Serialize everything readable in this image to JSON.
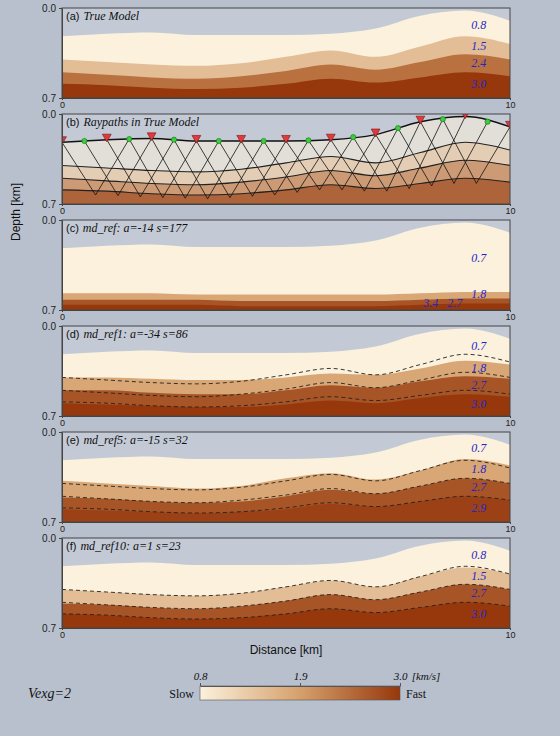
{
  "chart_data": {
    "type": "layer_model",
    "x_label": "Distance [km]",
    "y_label": "Depth [km]",
    "xlim": [
      0,
      10
    ],
    "xticks": [
      0,
      10
    ],
    "ylim": [
      0,
      0.7
    ],
    "yticks": [
      {
        "value": 0,
        "label": "0.0"
      },
      {
        "value": 0.7,
        "label": "0.7"
      }
    ],
    "x": [
      0,
      1,
      2,
      3,
      4,
      5,
      6,
      7,
      8,
      9,
      10
    ],
    "surface": [
      0.22,
      0.2,
      0.19,
      0.21,
      0.21,
      0.21,
      0.2,
      0.16,
      0.06,
      0.02,
      0.1
    ],
    "panels": [
      {
        "letter": "(a)",
        "title": "True Model",
        "velocities": [
          0.8,
          1.5,
          2.4,
          3.0
        ],
        "value_labels": [
          "0.8",
          "1.5",
          "2.4",
          "3.0"
        ],
        "boundaries": [
          [
            0.4,
            0.42,
            0.44,
            0.45,
            0.43,
            0.38,
            0.33,
            0.38,
            0.3,
            0.22,
            0.28
          ],
          [
            0.5,
            0.52,
            0.54,
            0.55,
            0.53,
            0.49,
            0.44,
            0.48,
            0.42,
            0.36,
            0.4
          ],
          [
            0.59,
            0.6,
            0.62,
            0.63,
            0.62,
            0.59,
            0.55,
            0.58,
            0.54,
            0.5,
            0.53
          ]
        ]
      },
      {
        "letter": "(b)",
        "title": "Raypaths in True Model",
        "line_style": "solid",
        "sources": [
          [
            0,
            0.22
          ],
          [
            1,
            0.2
          ],
          [
            2,
            0.19
          ],
          [
            3,
            0.21
          ],
          [
            4,
            0.21
          ],
          [
            5,
            0.21
          ],
          [
            6,
            0.2
          ],
          [
            7,
            0.16
          ],
          [
            8,
            0.06
          ],
          [
            9,
            0.02
          ],
          [
            10,
            0.1
          ]
        ],
        "receivers": [
          [
            0.5,
            0.21
          ],
          [
            1.5,
            0.195
          ],
          [
            2.5,
            0.2
          ],
          [
            3.5,
            0.21
          ],
          [
            4.5,
            0.21
          ],
          [
            5.5,
            0.205
          ],
          [
            6.5,
            0.18
          ],
          [
            7.5,
            0.11
          ],
          [
            8.5,
            0.04
          ],
          [
            9.5,
            0.06
          ]
        ],
        "rays": [
          [
            [
              0,
              0.22
            ],
            [
              0.75,
              0.63
            ],
            [
              1.5,
              0.195
            ]
          ],
          [
            [
              1,
              0.2
            ],
            [
              1.75,
              0.645
            ],
            [
              2.5,
              0.2
            ]
          ],
          [
            [
              2,
              0.19
            ],
            [
              2.75,
              0.655
            ],
            [
              3.5,
              0.21
            ]
          ],
          [
            [
              3,
              0.21
            ],
            [
              3.75,
              0.65
            ],
            [
              4.5,
              0.21
            ]
          ],
          [
            [
              4,
              0.21
            ],
            [
              4.75,
              0.63
            ],
            [
              5.5,
              0.205
            ]
          ],
          [
            [
              5,
              0.21
            ],
            [
              5.75,
              0.59
            ],
            [
              6.5,
              0.18
            ]
          ],
          [
            [
              6,
              0.2
            ],
            [
              6.75,
              0.6
            ],
            [
              7.5,
              0.11
            ]
          ],
          [
            [
              7,
              0.16
            ],
            [
              7.75,
              0.58
            ],
            [
              8.5,
              0.04
            ]
          ],
          [
            [
              8,
              0.06
            ],
            [
              8.75,
              0.54
            ],
            [
              9.5,
              0.06
            ]
          ],
          [
            [
              2,
              0.19
            ],
            [
              1.25,
              0.635
            ],
            [
              0.5,
              0.21
            ]
          ],
          [
            [
              3,
              0.21
            ],
            [
              2.25,
              0.65
            ],
            [
              1.5,
              0.195
            ]
          ],
          [
            [
              4,
              0.21
            ],
            [
              3.25,
              0.66
            ],
            [
              2.5,
              0.2
            ]
          ],
          [
            [
              5,
              0.21
            ],
            [
              4.25,
              0.64
            ],
            [
              3.5,
              0.21
            ]
          ],
          [
            [
              6,
              0.2
            ],
            [
              5.25,
              0.61
            ],
            [
              4.5,
              0.21
            ]
          ],
          [
            [
              7,
              0.16
            ],
            [
              6.25,
              0.59
            ],
            [
              5.5,
              0.205
            ]
          ],
          [
            [
              8,
              0.06
            ],
            [
              7.25,
              0.6
            ],
            [
              6.5,
              0.18
            ]
          ],
          [
            [
              9,
              0.02
            ],
            [
              8.25,
              0.56
            ],
            [
              7.5,
              0.11
            ]
          ],
          [
            [
              10,
              0.1
            ],
            [
              9.25,
              0.54
            ],
            [
              8.5,
              0.04
            ]
          ]
        ]
      },
      {
        "letter": "(c)",
        "title": "md_ref: a=-14 s=177",
        "velocities": [
          0.7,
          1.8,
          2.7,
          3.4
        ],
        "value_labels": [
          "0.7",
          "1.8",
          "2.7",
          "3.4"
        ],
        "boundaries": [
          [
            0.57,
            0.57,
            0.57,
            0.58,
            0.58,
            0.58,
            0.58,
            0.58,
            0.57,
            0.56,
            0.56
          ],
          [
            0.62,
            0.62,
            0.62,
            0.62,
            0.63,
            0.63,
            0.63,
            0.63,
            0.62,
            0.61,
            0.61
          ],
          [
            0.66,
            0.66,
            0.66,
            0.66,
            0.67,
            0.67,
            0.67,
            0.67,
            0.66,
            0.65,
            0.65
          ]
        ]
      },
      {
        "letter": "(d)",
        "title": "md_ref1: a=-34 s=86",
        "line_style": "dashed",
        "velocities": [
          0.7,
          1.8,
          2.7,
          3.0
        ],
        "value_labels": [
          "0.7",
          "1.8",
          "2.7",
          "3.0"
        ],
        "boundaries": [
          [
            0.4,
            0.4,
            0.41,
            0.42,
            0.42,
            0.4,
            0.37,
            0.38,
            0.33,
            0.27,
            0.3
          ],
          [
            0.5,
            0.5,
            0.52,
            0.53,
            0.53,
            0.5,
            0.46,
            0.48,
            0.43,
            0.39,
            0.41
          ],
          [
            0.6,
            0.61,
            0.62,
            0.63,
            0.63,
            0.61,
            0.58,
            0.6,
            0.56,
            0.53,
            0.55
          ]
        ]
      },
      {
        "letter": "(e)",
        "title": "md_ref5: a=-15 s=32",
        "line_style": "dashed",
        "velocities": [
          0.7,
          1.8,
          2.7,
          2.9
        ],
        "value_labels": [
          "0.7",
          "1.8",
          "2.7",
          "2.9"
        ],
        "boundaries": [
          [
            0.38,
            0.4,
            0.42,
            0.44,
            0.42,
            0.36,
            0.32,
            0.37,
            0.3,
            0.21,
            0.26
          ],
          [
            0.51,
            0.52,
            0.54,
            0.55,
            0.54,
            0.5,
            0.45,
            0.48,
            0.42,
            0.36,
            0.4
          ],
          [
            0.6,
            0.61,
            0.62,
            0.63,
            0.62,
            0.6,
            0.56,
            0.58,
            0.54,
            0.5,
            0.53
          ]
        ]
      },
      {
        "letter": "(f)",
        "title": "md_ref10: a=1 s=23",
        "line_style": "dashed",
        "velocities": [
          0.8,
          1.5,
          2.7,
          3.0
        ],
        "value_labels": [
          "0.8",
          "1.5",
          "2.7",
          "3.0"
        ],
        "boundaries": [
          [
            0.4,
            0.42,
            0.44,
            0.45,
            0.43,
            0.38,
            0.33,
            0.38,
            0.3,
            0.23,
            0.28
          ],
          [
            0.51,
            0.52,
            0.54,
            0.55,
            0.53,
            0.49,
            0.44,
            0.48,
            0.42,
            0.36,
            0.4
          ],
          [
            0.59,
            0.6,
            0.62,
            0.63,
            0.62,
            0.59,
            0.55,
            0.58,
            0.54,
            0.5,
            0.53
          ]
        ]
      }
    ],
    "colorbar": {
      "range": [
        0.8,
        3.0
      ],
      "ticks": [
        0.8,
        1.9,
        {
          "value": 3.0,
          "label": "3.0"
        }
      ],
      "unit": "[km/s]",
      "low_label": "Slow",
      "high_label": "Fast"
    },
    "annotation": "Vexg=2"
  }
}
